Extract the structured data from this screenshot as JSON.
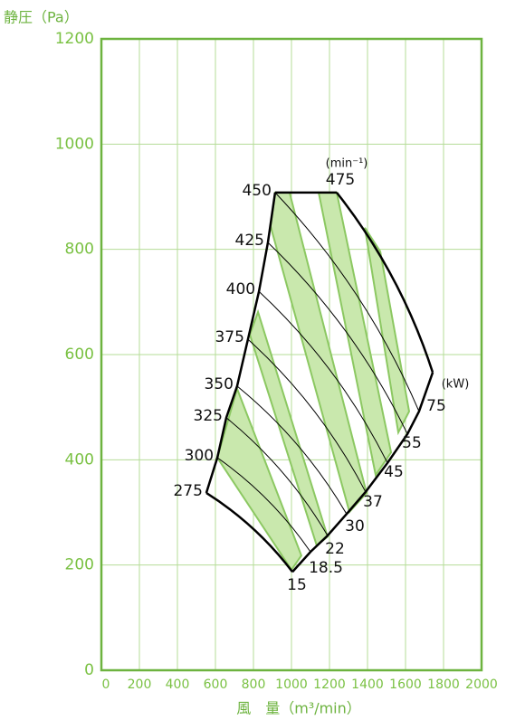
{
  "chart_data": {
    "type": "fan-performance",
    "ylabel": "静圧（Pa）",
    "xlabel": "風　量（m³/min）",
    "xlim": [
      0,
      2000
    ],
    "ylim": [
      0,
      1200
    ],
    "xticks": [
      0,
      200,
      400,
      600,
      800,
      1000,
      1200,
      1400,
      1600,
      1800,
      2000
    ],
    "yticks": [
      0,
      200,
      400,
      600,
      800,
      1000,
      1200
    ],
    "grid": true,
    "axis_color": "#6db33f",
    "grid_color": "#b5dc97",
    "band_color": "#c9e8ad",
    "band_edge_color": "#8cc862",
    "line_color": "#000000",
    "speed_unit": "(min⁻¹)",
    "power_unit": "(kW)",
    "speeds": [
      {
        "rpm": 275,
        "x": [
          552,
          1005
        ],
        "y": [
          337,
          187
        ]
      },
      {
        "rpm": 300,
        "x": [
          610,
          1100
        ],
        "y": [
          404,
          225
        ]
      },
      {
        "rpm": 325,
        "x": [
          657,
          1190
        ],
        "y": [
          480,
          256
        ]
      },
      {
        "rpm": 350,
        "x": [
          714,
          1290
        ],
        "y": [
          540,
          297
        ]
      },
      {
        "rpm": 375,
        "x": [
          771,
          1390
        ],
        "y": [
          629,
          339
        ]
      },
      {
        "rpm": 400,
        "x": [
          829,
          1505
        ],
        "y": [
          720,
          394
        ]
      },
      {
        "rpm": 425,
        "x": [
          876,
          1610
        ],
        "y": [
          813,
          449
        ]
      },
      {
        "rpm": 450,
        "x": [
          914,
          1671
        ],
        "y": [
          908,
          492
        ]
      },
      {
        "rpm": 475,
        "x": [
          1238,
          1743
        ],
        "y": [
          908,
          566
        ]
      }
    ],
    "power_kw": [
      15,
      18.5,
      22,
      30,
      37,
      45,
      55,
      75
    ],
    "bands": [
      {
        "x": [
          610,
          714,
          1052,
          1000
        ],
        "y": [
          404,
          535,
          218,
          191
        ]
      },
      {
        "x": [
          781,
          824,
          1190,
          1133
        ],
        "y": [
          638,
          681,
          254,
          237
        ]
      },
      {
        "x": [
          890,
          914,
          990,
          1395,
          1305
        ],
        "y": [
          844,
          908,
          908,
          337,
          301
        ]
      },
      {
        "x": [
          1143,
          1238,
          1524,
          1443
        ],
        "y": [
          908,
          908,
          414,
          371
        ]
      },
      {
        "x": [
          1386,
          1467,
          1619,
          1562
        ],
        "y": [
          841,
          796,
          492,
          452
        ]
      }
    ]
  }
}
